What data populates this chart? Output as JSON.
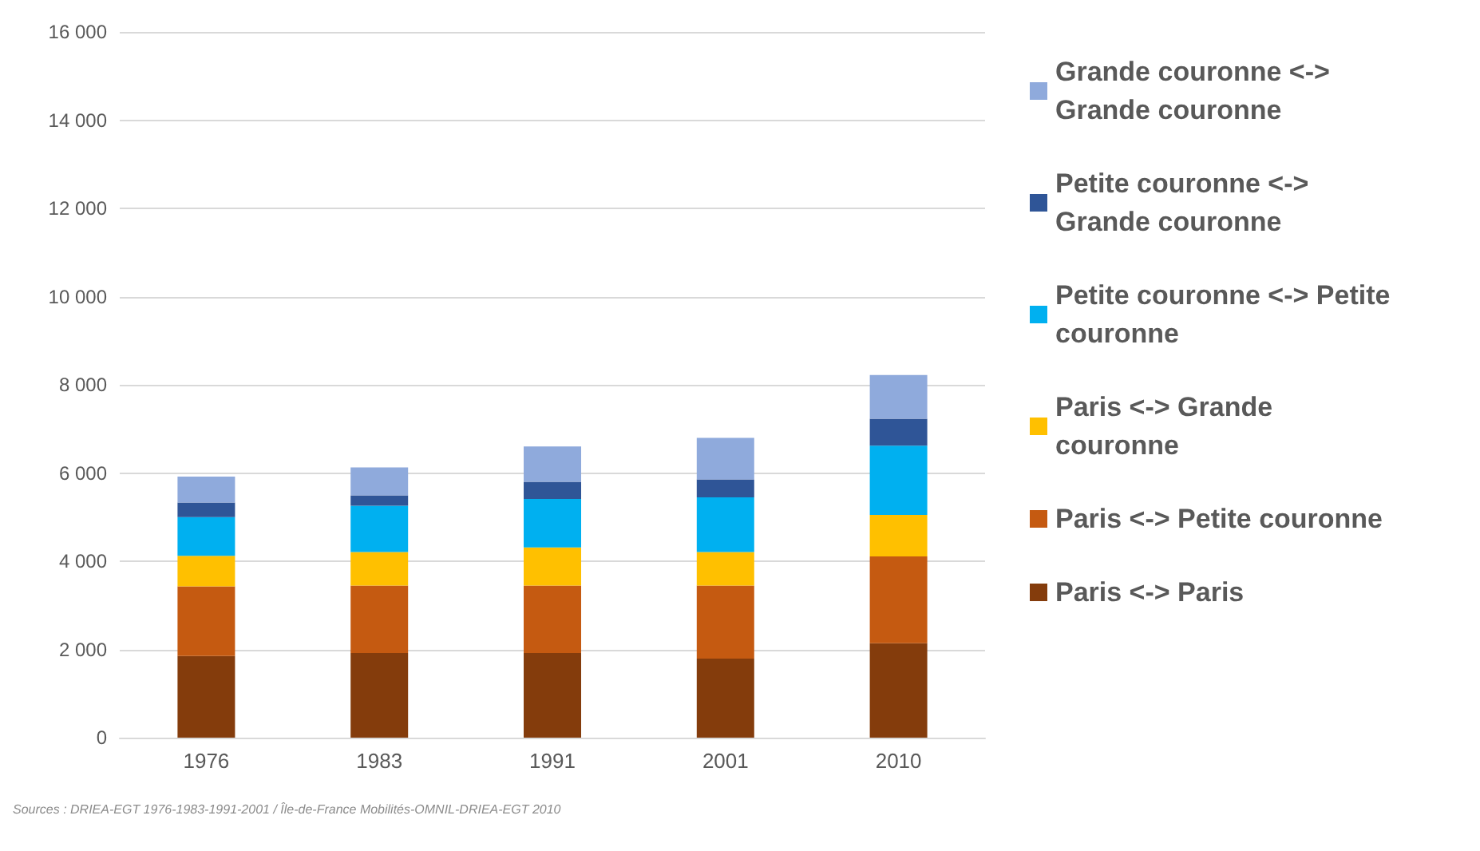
{
  "chart_data": {
    "type": "bar",
    "stacked": true,
    "categories": [
      "1976",
      "1983",
      "1991",
      "2001",
      "2010"
    ],
    "series": [
      {
        "name": "Paris <-> Paris",
        "color": "#843c0c",
        "values": [
          1850,
          1920,
          1920,
          1790,
          2140
        ]
      },
      {
        "name": "Paris <-> Petite couronne",
        "color": "#c55a11",
        "values": [
          1580,
          1530,
          1530,
          1660,
          1970
        ]
      },
      {
        "name": "Paris <-> Grande couronne",
        "color": "#ffc000",
        "values": [
          690,
          760,
          860,
          760,
          940
        ]
      },
      {
        "name": "Petite couronne <-> Petite couronne",
        "color": "#00b0f0",
        "values": [
          880,
          1050,
          1100,
          1240,
          1570
        ]
      },
      {
        "name": "Petite couronne <-> Grande couronne",
        "color": "#2f5597",
        "values": [
          330,
          235,
          390,
          405,
          610
        ]
      },
      {
        "name": "Grande couronne <-> Grande couronne",
        "color": "#8faadc",
        "values": [
          590,
          630,
          800,
          940,
          990
        ]
      }
    ],
    "ylim": [
      0,
      16000
    ],
    "yticks": [
      0,
      2000,
      4000,
      6000,
      8000,
      10000,
      12000,
      14000,
      16000
    ],
    "grid": "y",
    "legend": "right",
    "annotations": [
      "Sources : DRIEA-EGT 1976-1983-1991-2001 / Île-de-France Mobilités-OMNIL-DRIEA-EGT 2010"
    ]
  }
}
